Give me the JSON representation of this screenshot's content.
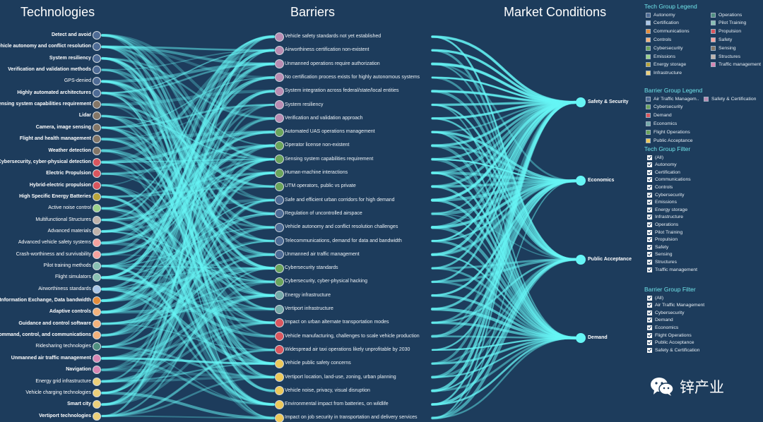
{
  "titles": {
    "technologies": "Technologies",
    "barriers": "Barriers",
    "market": "Market Conditions"
  },
  "colors": {
    "flow": "#66f5f5",
    "Autonomy": "#4e6b95",
    "Certification": "#a9c6e8",
    "Communications": "#e38d3c",
    "Controls": "#f3b27c",
    "Cybersecurity": "#6aa35b",
    "Emissions": "#9bd28a",
    "Energy storage": "#b8a43c",
    "Infrastructure": "#ecd07a",
    "Operations": "#4f8f80",
    "Pilot Training": "#89bfb3",
    "Propulsion": "#d9565e",
    "Safety": "#f5a29e",
    "Sensing": "#837667",
    "Structures": "#bfb3ab",
    "Traffic management": "#d786b3",
    "Air Traffic Management": "#4e6b95",
    "Demand": "#d9565e",
    "Economics": "#74a9a8",
    "Flight Operations": "#6aa35b",
    "Public Acceptance": "#ecc85a",
    "Safety & Certification": "#b98cb2"
  },
  "technologies": [
    {
      "label": "Detect and avoid",
      "group": "Autonomy",
      "bold": true
    },
    {
      "label": "Vehicle autonomy and conflict resolution",
      "group": "Autonomy",
      "bold": true
    },
    {
      "label": "System resiliency",
      "group": "Autonomy",
      "bold": true
    },
    {
      "label": "Verification and validation methods",
      "group": "Autonomy",
      "bold": true
    },
    {
      "label": "GPS-denied",
      "group": "Autonomy",
      "bold": false
    },
    {
      "label": "Highly automated architectures",
      "group": "Autonomy",
      "bold": true
    },
    {
      "label": "Sensing system capabilities requirement",
      "group": "Sensing",
      "bold": true
    },
    {
      "label": "Lidar",
      "group": "Sensing",
      "bold": true
    },
    {
      "label": "Camera, image sensing",
      "group": "Sensing",
      "bold": true
    },
    {
      "label": "Flight and health management",
      "group": "Sensing",
      "bold": true
    },
    {
      "label": "Weather detection",
      "group": "Sensing",
      "bold": true
    },
    {
      "label": "Cybersecurity, cyber-physical detection",
      "group": "Propulsion",
      "bold": true
    },
    {
      "label": "Electric Propulsion",
      "group": "Propulsion",
      "bold": true
    },
    {
      "label": "Hybrid-electric propulsion",
      "group": "Propulsion",
      "bold": true
    },
    {
      "label": "High Specific Energy Batteries",
      "group": "Energy storage",
      "bold": true
    },
    {
      "label": "Active noise control",
      "group": "Emissions",
      "bold": false
    },
    {
      "label": "Multifunctional Structures",
      "group": "Structures",
      "bold": false
    },
    {
      "label": "Advanced materials",
      "group": "Structures",
      "bold": false
    },
    {
      "label": "Advanced vehicle safety systems",
      "group": "Safety",
      "bold": false
    },
    {
      "label": "Crash-worthiness and survivability",
      "group": "Safety",
      "bold": false
    },
    {
      "label": "Pilot training methods",
      "group": "Pilot Training",
      "bold": false
    },
    {
      "label": "Flight simulators",
      "group": "Pilot Training",
      "bold": false
    },
    {
      "label": "Airworthiness standards",
      "group": "Certification",
      "bold": false
    },
    {
      "label": "Information Exchange, Data bandwidth",
      "group": "Communications",
      "bold": true
    },
    {
      "label": "Adaptive controls",
      "group": "Controls",
      "bold": true
    },
    {
      "label": "Guidance and control software",
      "group": "Controls",
      "bold": true
    },
    {
      "label": "Command, control, and communications",
      "group": "Controls",
      "bold": true
    },
    {
      "label": "Ridesharing technologies",
      "group": "Operations",
      "bold": false
    },
    {
      "label": "Unmanned air traffic management",
      "group": "Traffic management",
      "bold": true
    },
    {
      "label": "Navigation",
      "group": "Traffic management",
      "bold": true
    },
    {
      "label": "Energy grid infrastructure",
      "group": "Infrastructure",
      "bold": false
    },
    {
      "label": "Vehicle charging technologies",
      "group": "Infrastructure",
      "bold": false
    },
    {
      "label": "Smart city",
      "group": "Infrastructure",
      "bold": true
    },
    {
      "label": "Vertiport technologies",
      "group": "Infrastructure",
      "bold": true
    }
  ],
  "barriers": [
    {
      "label": "Vehicle safety standards not yet established",
      "group": "Safety & Certification"
    },
    {
      "label": "Airworthiness certification non-existent",
      "group": "Safety & Certification"
    },
    {
      "label": "Unmanned operations require authorization",
      "group": "Safety & Certification"
    },
    {
      "label": "No certification process exists for highly autonomous systems",
      "group": "Safety & Certification"
    },
    {
      "label": "System integration across federal/state/local entities",
      "group": "Safety & Certification"
    },
    {
      "label": "System resiliency",
      "group": "Safety & Certification"
    },
    {
      "label": "Verification and validation approach",
      "group": "Safety & Certification"
    },
    {
      "label": "Automated UAS operations management",
      "group": "Flight Operations"
    },
    {
      "label": "Operator license non-existent",
      "group": "Flight Operations"
    },
    {
      "label": "Sensing system capabilities requirement",
      "group": "Flight Operations"
    },
    {
      "label": "Human-machine interactions",
      "group": "Flight Operations"
    },
    {
      "label": "UTM operators, public vs private",
      "group": "Flight Operations"
    },
    {
      "label": "Safe and efficient urban corridors for high demand",
      "group": "Air Traffic Management"
    },
    {
      "label": "Regulation of uncontrolled airspace",
      "group": "Air Traffic Management"
    },
    {
      "label": "Vehicle autonomy and conflict resolution challenges",
      "group": "Air Traffic Management"
    },
    {
      "label": "Telecommunications, demand for data and bandwidth",
      "group": "Air Traffic Management"
    },
    {
      "label": "Unmanned air traffic management",
      "group": "Air Traffic Management"
    },
    {
      "label": "Cybersecurity standards",
      "group": "Cybersecurity"
    },
    {
      "label": "Cybersecurity, cyber-physical hacking",
      "group": "Cybersecurity"
    },
    {
      "label": "Energy infrastructure",
      "group": "Economics"
    },
    {
      "label": "Vertiport infrastructure",
      "group": "Economics"
    },
    {
      "label": "Impact on urban alternate transportation modes",
      "group": "Demand"
    },
    {
      "label": "Vehicle manufacturing, challenges to scale vehicle production",
      "group": "Demand"
    },
    {
      "label": "Widespread air taxi operations likely unprofitable by 2030",
      "group": "Demand"
    },
    {
      "label": "Vehicle public safety concerns",
      "group": "Public Acceptance"
    },
    {
      "label": "Vertiport location, land-use, zoning, urban planning",
      "group": "Public Acceptance"
    },
    {
      "label": "Vehicle noise, privacy, visual disruption",
      "group": "Public Acceptance"
    },
    {
      "label": "Environmental impact from batteries, on wildlife",
      "group": "Public Acceptance"
    },
    {
      "label": "Impact on job security in transportation and delivery services",
      "group": "Public Acceptance"
    }
  ],
  "markets": [
    {
      "label": "Safety & Security"
    },
    {
      "label": "Economics"
    },
    {
      "label": "Public Acceptance"
    },
    {
      "label": "Demand"
    }
  ],
  "tech_legend": {
    "title": "Tech Group Legend",
    "items": [
      "Autonomy",
      "Operations",
      "Certification",
      "Pilot Training",
      "Communications",
      "Propulsion",
      "Controls",
      "Safety",
      "Cybersecurity",
      "Sensing",
      "Emissions",
      "Structures",
      "Energy storage",
      "Traffic management",
      "Infrastructure"
    ]
  },
  "barrier_legend": {
    "title": "Barrier Group Legend",
    "items": [
      {
        "label": "Air Traffic Managem..",
        "group": "Air Traffic Management"
      },
      {
        "label": "Safety & Certification",
        "group": "Safety & Certification"
      },
      {
        "label": "Cybersecurity",
        "group": "Cybersecurity"
      },
      {
        "label": "Demand",
        "group": "Demand"
      },
      {
        "label": "Economics",
        "group": "Economics"
      },
      {
        "label": "Flight Operations",
        "group": "Flight Operations"
      },
      {
        "label": "Public Acceptance",
        "group": "Public Acceptance"
      }
    ]
  },
  "tech_filter": {
    "title": "Tech Group Filter",
    "items": [
      "(All)",
      "Autonomy",
      "Certification",
      "Communications",
      "Controls",
      "Cybersecurity",
      "Emissions",
      "Energy storage",
      "Infrastructure",
      "Operations",
      "Pilot Training",
      "Propulsion",
      "Safety",
      "Sensing",
      "Structures",
      "Traffic management"
    ]
  },
  "barrier_filter": {
    "title": "Barrier Group Filter",
    "items": [
      "(All)",
      "Air Traffic Management",
      "Cybersecurity",
      "Demand",
      "Economics",
      "Flight Operations",
      "Public Acceptance",
      "Safety & Certification"
    ]
  },
  "watermark": {
    "text": "锌产业",
    "icon": "wechat-icon"
  }
}
